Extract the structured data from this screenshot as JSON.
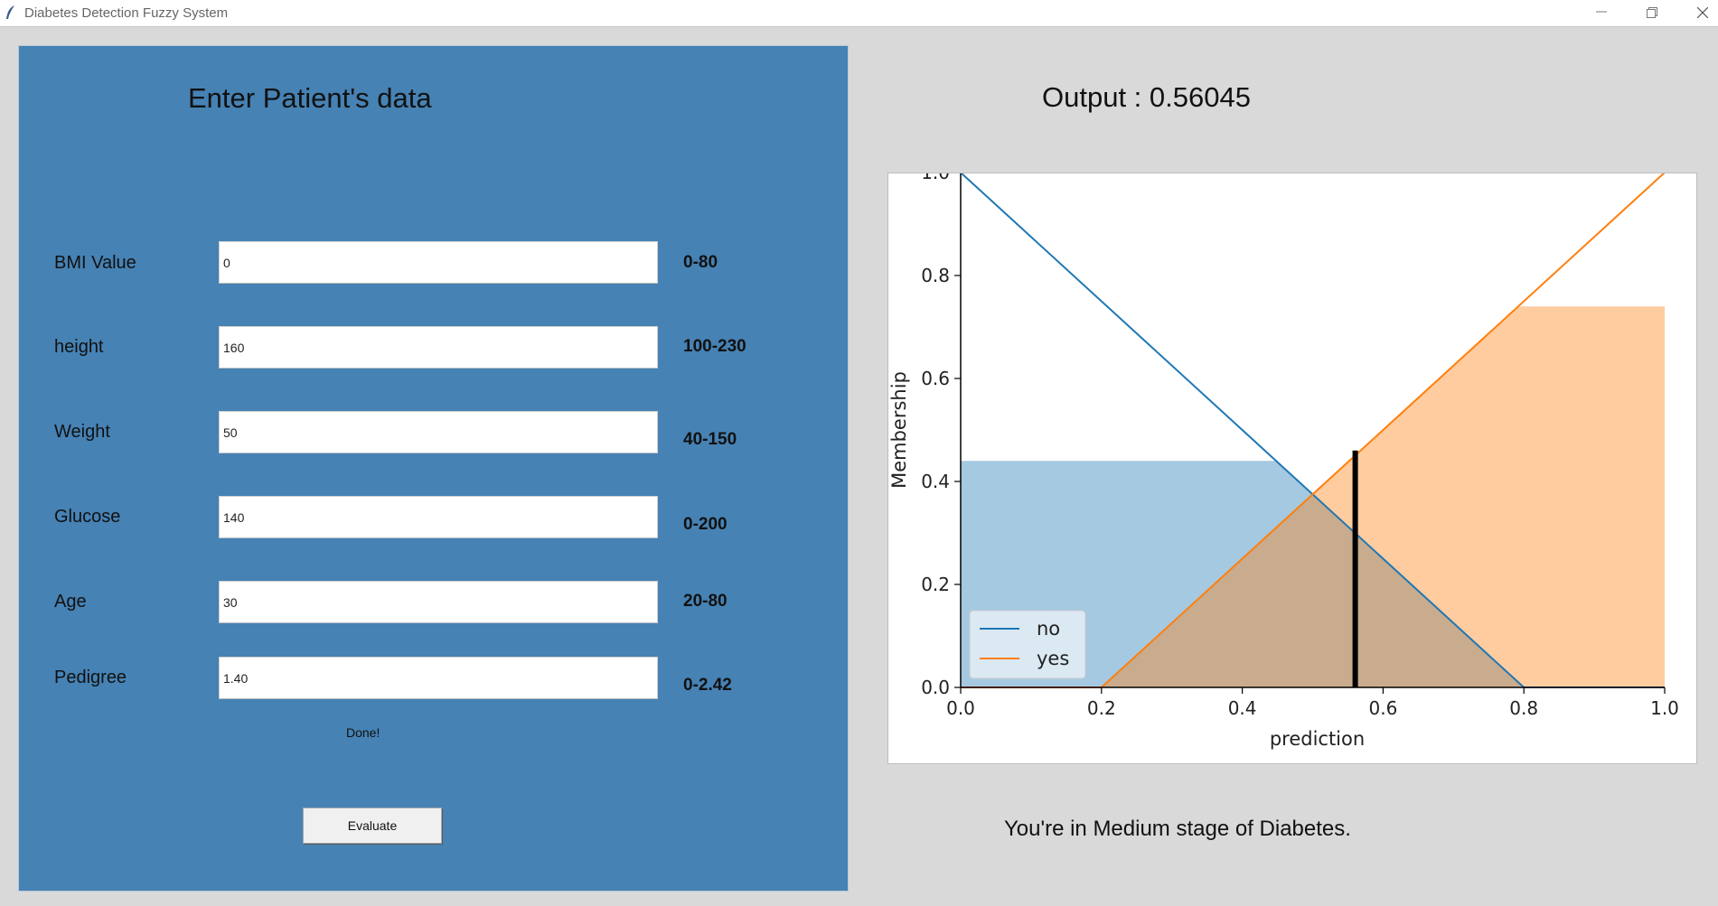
{
  "window": {
    "title": "Diabetes Detection Fuzzy System",
    "app_icon": "feather-icon"
  },
  "form": {
    "title": "Enter Patient's data",
    "fields": [
      {
        "label": "BMI Value",
        "value": "0",
        "range": "0-80"
      },
      {
        "label": "height",
        "value": "160",
        "range": "100-230"
      },
      {
        "label": "Weight",
        "value": "50",
        "range": "40-150"
      },
      {
        "label": "Glucose",
        "value": "140",
        "range": "0-200"
      },
      {
        "label": "Age",
        "value": "30",
        "range": "20-80"
      },
      {
        "label": "Pedigree",
        "value": "1.40",
        "range": "0-2.42"
      }
    ],
    "status": "Done!",
    "evaluate_label": "Evaluate"
  },
  "output": {
    "text": "Output : 0.56045",
    "result": "You're in Medium stage of Diabetes."
  },
  "chart_data": {
    "type": "line",
    "xlabel": "prediction",
    "ylabel": "Membership",
    "xlim": [
      0,
      1
    ],
    "ylim": [
      0,
      1
    ],
    "xticks": [
      "0.0",
      "0.2",
      "0.4",
      "0.6",
      "0.8",
      "1.0"
    ],
    "yticks": [
      "0.0",
      "0.2",
      "0.4",
      "0.6",
      "0.8",
      "1.0"
    ],
    "series": [
      {
        "name": "no",
        "x": [
          0,
          0.8,
          1.0
        ],
        "y": [
          1,
          0,
          0
        ],
        "color": "#1f77b4"
      },
      {
        "name": "yes",
        "x": [
          0,
          0.2,
          1.0
        ],
        "y": [
          0,
          0,
          1
        ],
        "color": "#ff7f0e"
      }
    ],
    "activation": {
      "no": {
        "level": 0.44,
        "color": "#1f77b4"
      },
      "yes": {
        "level": 0.74,
        "color": "#ff7f0e"
      }
    },
    "output_marker": {
      "x": 0.56045,
      "height": 0.46
    },
    "legend_position": "lower-left"
  }
}
